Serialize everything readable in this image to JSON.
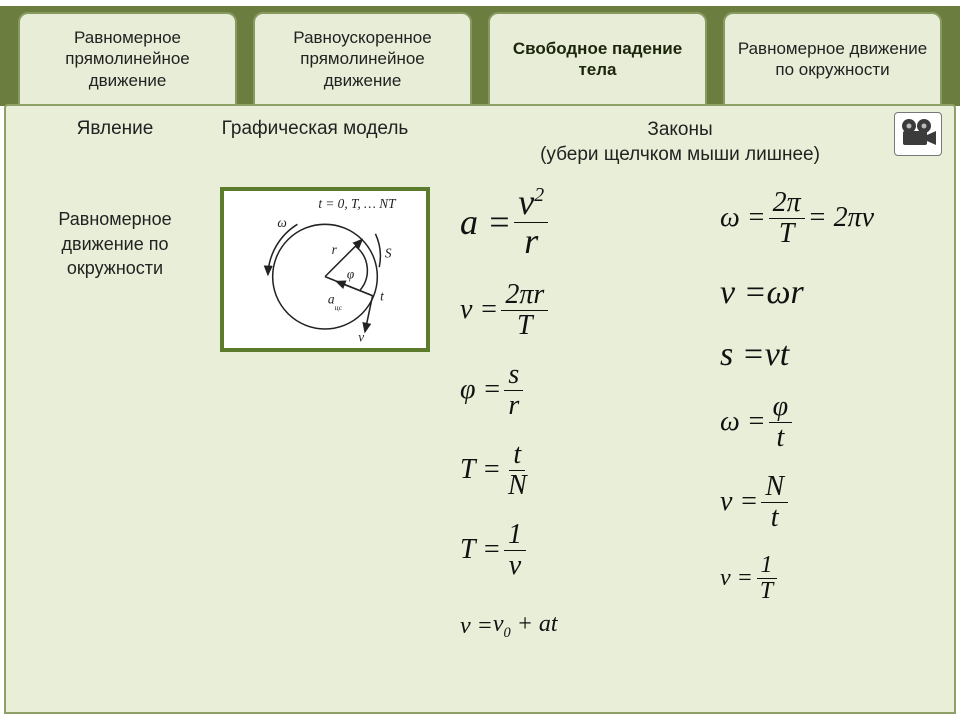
{
  "tabs": [
    {
      "label": "Равномерное прямолинейное движение"
    },
    {
      "label": "Равноускоренное прямолинейное движение"
    },
    {
      "label": "Свободное падение тела",
      "active": true
    },
    {
      "label": "Равномерное движение по окружности"
    }
  ],
  "headers": {
    "col1": "Явление",
    "col2": "Графическая модель",
    "col3_line1": "Законы",
    "col3_line2": "(убери щелчком мыши лишнее)"
  },
  "phenomenon": "Равномерное движение по окружности",
  "diagram": {
    "labels": {
      "t": "t = 0, T, … NT",
      "omega": "ω",
      "S": "S",
      "r": "r",
      "phi": "φ",
      "a": "a",
      "v": "v",
      "tpoint": "t",
      "sub": "цс"
    },
    "stroke": "#222222"
  },
  "formulas_left": [
    {
      "lhs": "a",
      "rhs_type": "frac",
      "num": "v²",
      "den": "r",
      "size": "xl"
    },
    {
      "lhs": "v",
      "rhs_type": "frac",
      "num": "2πr",
      "den": "T",
      "size": "md"
    },
    {
      "lhs": "φ",
      "rhs_type": "frac",
      "num": "s",
      "den": "r",
      "size": "md"
    },
    {
      "lhs": "T",
      "rhs_type": "frac",
      "num": "t",
      "den": "N",
      "size": "md"
    },
    {
      "lhs": "T",
      "rhs_type": "frac",
      "num": "1",
      "den": "ν",
      "size": "md"
    },
    {
      "lhs": "v",
      "rhs_type": "inline",
      "text": "v₀ + at",
      "size": "sm"
    }
  ],
  "formulas_right": [
    {
      "lhs": "ω",
      "rhs_type": "frac_tail",
      "num": "2π",
      "den": "T",
      "tail": " = 2πν",
      "size": "md"
    },
    {
      "lhs": "v",
      "rhs_type": "inline",
      "text": "ωr",
      "size": "lg"
    },
    {
      "lhs": "s",
      "rhs_type": "inline",
      "text": "vt",
      "size": "lg"
    },
    {
      "lhs": "ω",
      "rhs_type": "frac",
      "num": "φ",
      "den": "t",
      "size": "md"
    },
    {
      "lhs": "ν",
      "rhs_type": "frac",
      "num": "N",
      "den": "t",
      "size": "md"
    },
    {
      "lhs": "ν",
      "rhs_type": "frac",
      "num": "1",
      "den": "T",
      "size": "sm"
    }
  ],
  "colors": {
    "tab_bg": "#e8edd7",
    "tab_border": "#889a60",
    "tabbar_bg": "#6b7e3f",
    "panel_bg": "#e8eed7",
    "panel_border": "#8fa067",
    "model_border": "#5d7b2d"
  }
}
